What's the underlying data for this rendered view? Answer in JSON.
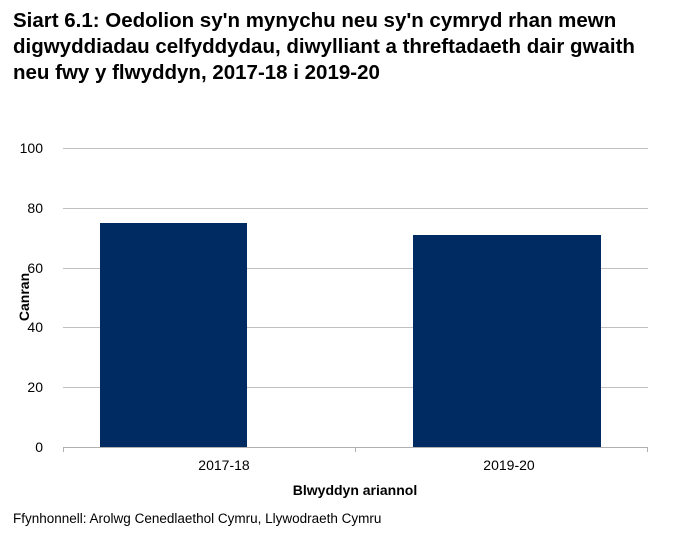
{
  "chart_data": {
    "type": "bar",
    "title": "Siart 6.1: Oedolion sy'n mynychu neu sy'n cymryd rhan mewn digwyddiadau celfyddydau, diwylliant a threftadaeth dair gwaith neu fwy y flwyddyn, 2017-18 i 2019-20",
    "categories": [
      "2017-18",
      "2019-20"
    ],
    "values": [
      75,
      71
    ],
    "xlabel": "Blwyddyn ariannol",
    "ylabel": "Canran",
    "ylim": [
      0,
      100
    ],
    "yticks": [
      "0",
      "20",
      "40",
      "60",
      "80",
      "100"
    ],
    "grid": true,
    "legend": "none",
    "bar_color": "#002b62",
    "source": "Ffynhonnell: Arolwg Cenedlaethol Cymru, Llywodraeth Cymru"
  },
  "title": "Siart 6.1: Oedolion sy'n mynychu neu sy'n cymryd rhan mewn digwyddiadau celfyddydau, diwylliant a threftadaeth dair gwaith neu fwy y flwyddyn, 2017-18 i 2019-20",
  "axes": {
    "y_title": "Canran",
    "x_title": "Blwyddyn ariannol",
    "y_ticks": [
      "100",
      "80",
      "60",
      "40",
      "20",
      "0"
    ],
    "x_labels": [
      "2017-18",
      "2019-20"
    ]
  },
  "source": "Ffynhonnell: Arolwg Cenedlaethol Cymru, Llywodraeth Cymru"
}
